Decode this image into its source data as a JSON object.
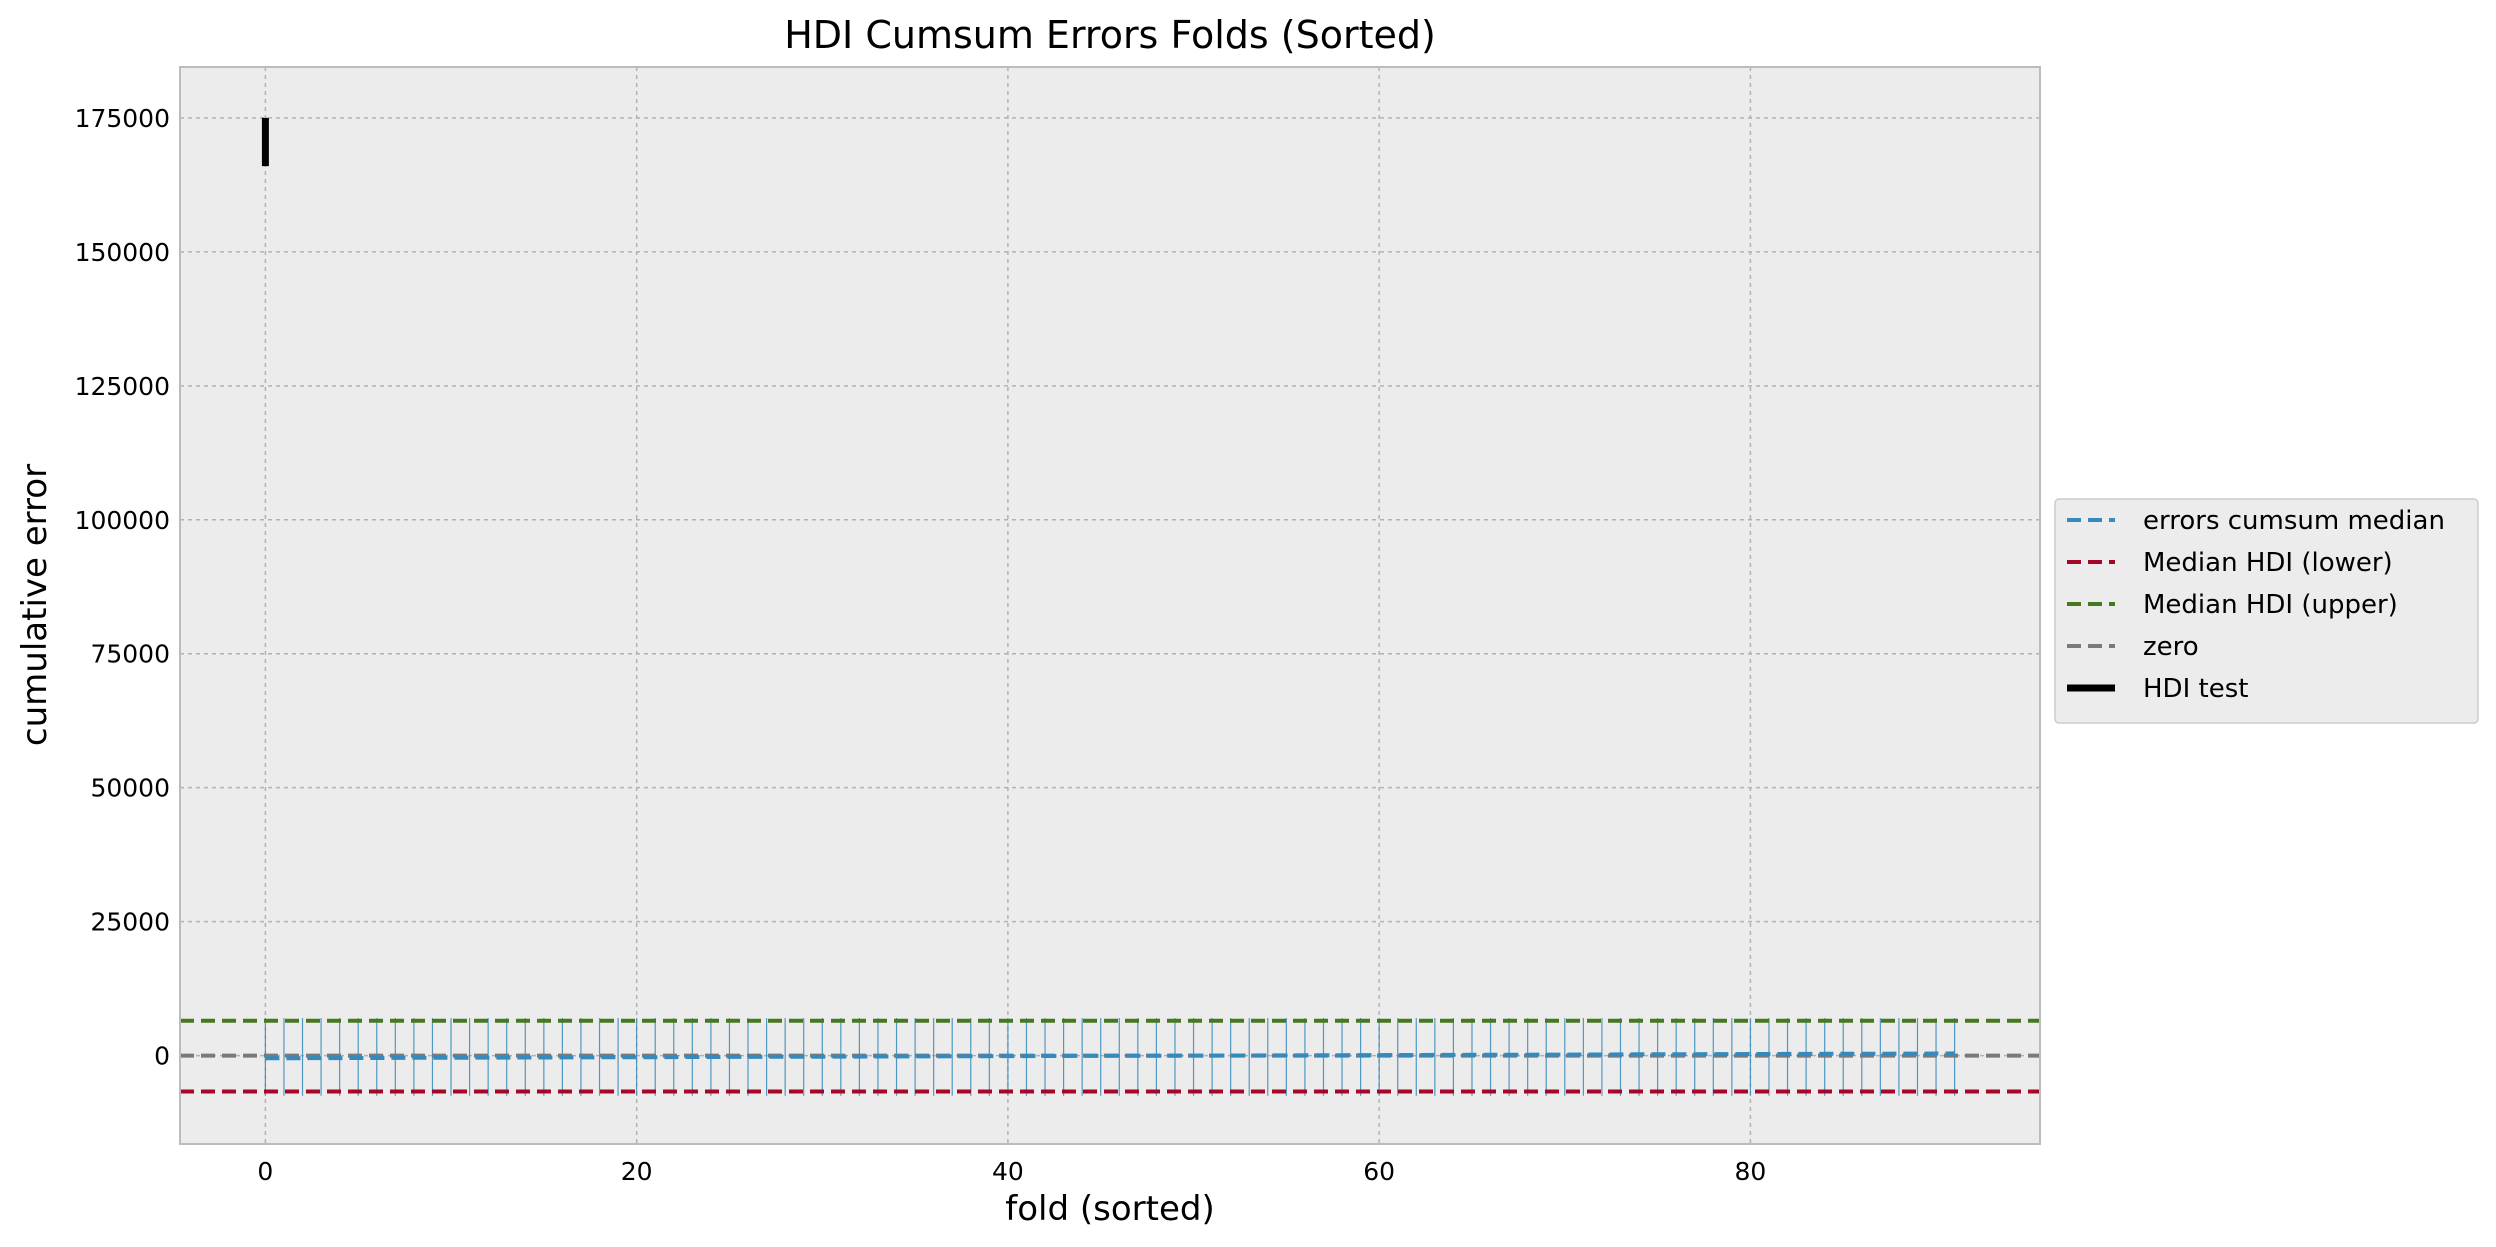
{
  "chart_data": {
    "type": "line",
    "title": "HDI Cumsum Errors Folds (Sorted)",
    "xlabel": "fold (sorted)",
    "ylabel": "cumulative error",
    "xlim": [
      -4.6,
      95.6
    ],
    "ylim": [
      -16500,
      184500
    ],
    "xticks": [
      0,
      20,
      40,
      60,
      80
    ],
    "yticks": [
      0,
      25000,
      50000,
      75000,
      100000,
      125000,
      150000,
      175000
    ],
    "grid": true,
    "legend_position": "right",
    "background_color": "#ececec",
    "folds": {
      "count": 92,
      "first_fold": 0,
      "last_fold": 91,
      "median_start": -500,
      "median_end": 400,
      "interval_lower": -7500,
      "interval_upper": 7000,
      "interval_color": "#348abd"
    },
    "series": [
      {
        "name": "errors cumsum median",
        "kind": "curve",
        "color": "#348abd",
        "style": "dashed"
      },
      {
        "name": "Median HDI (lower)",
        "kind": "hline",
        "y": -6700,
        "color": "#a60628",
        "style": "dashed"
      },
      {
        "name": "Median HDI (upper)",
        "kind": "hline",
        "y": 6500,
        "color": "#467821",
        "style": "dashed"
      },
      {
        "name": "zero",
        "kind": "hline",
        "y": 0,
        "color": "#7a7a7a",
        "style": "dashed"
      },
      {
        "name": "HDI test",
        "kind": "vbar",
        "x": 0,
        "y_low": 166000,
        "y_high": 175000,
        "color": "#000000",
        "style": "solid"
      }
    ]
  }
}
